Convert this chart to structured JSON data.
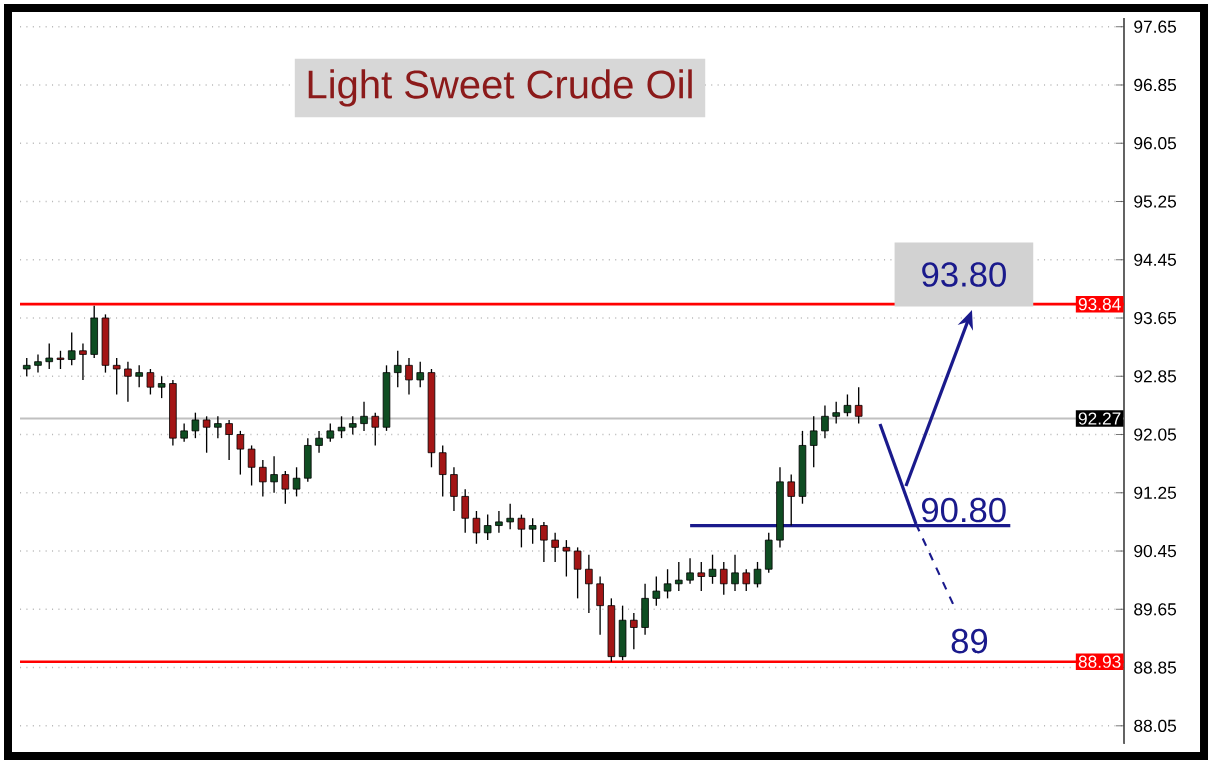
{
  "chart_data": {
    "type": "candlestick",
    "title": "Light Sweet Crude Oil",
    "categories": [
      null,
      null,
      null,
      null,
      null,
      null,
      null,
      null,
      null,
      null,
      null,
      null,
      null,
      null,
      null,
      null,
      null,
      null,
      null,
      null,
      null,
      null,
      null,
      null,
      null,
      null,
      null,
      null,
      null,
      null,
      null,
      null,
      null,
      null,
      null,
      null,
      null,
      null,
      null,
      null,
      null,
      null,
      null,
      null,
      null,
      null,
      null,
      null,
      null,
      null,
      null,
      null,
      null,
      null,
      null,
      null,
      null,
      null,
      null,
      null,
      null,
      null,
      null,
      null,
      null,
      null,
      null,
      null,
      null,
      null,
      null,
      null,
      null,
      null,
      null,
      null,
      null,
      null,
      null,
      null,
      null,
      null,
      null,
      null,
      null,
      null,
      null,
      null,
      null,
      null,
      null,
      null,
      null,
      null,
      null,
      null,
      null,
      null
    ],
    "ohlc": [
      [
        92.95,
        93.1,
        92.85,
        93.0
      ],
      [
        93.0,
        93.15,
        92.9,
        93.05
      ],
      [
        93.05,
        93.3,
        92.95,
        93.1
      ],
      [
        93.1,
        93.2,
        92.95,
        93.08
      ],
      [
        93.08,
        93.45,
        93.0,
        93.2
      ],
      [
        93.2,
        93.3,
        92.8,
        93.15
      ],
      [
        93.15,
        93.82,
        93.1,
        93.65
      ],
      [
        93.65,
        93.7,
        92.9,
        93.0
      ],
      [
        93.0,
        93.1,
        92.6,
        92.95
      ],
      [
        92.95,
        93.05,
        92.5,
        92.85
      ],
      [
        92.85,
        93.0,
        92.7,
        92.9
      ],
      [
        92.9,
        92.95,
        92.6,
        92.7
      ],
      [
        92.7,
        92.85,
        92.55,
        92.75
      ],
      [
        92.75,
        92.8,
        91.9,
        92.0
      ],
      [
        92.0,
        92.2,
        91.95,
        92.1
      ],
      [
        92.1,
        92.35,
        92.0,
        92.25
      ],
      [
        92.25,
        92.3,
        91.8,
        92.15
      ],
      [
        92.15,
        92.3,
        92.0,
        92.2
      ],
      [
        92.2,
        92.25,
        91.7,
        92.05
      ],
      [
        92.05,
        92.1,
        91.5,
        91.85
      ],
      [
        91.85,
        91.9,
        91.35,
        91.6
      ],
      [
        91.6,
        91.7,
        91.2,
        91.4
      ],
      [
        91.4,
        91.75,
        91.25,
        91.5
      ],
      [
        91.5,
        91.55,
        91.1,
        91.3
      ],
      [
        91.3,
        91.6,
        91.2,
        91.45
      ],
      [
        91.45,
        92.0,
        91.4,
        91.9
      ],
      [
        91.9,
        92.1,
        91.8,
        92.0
      ],
      [
        92.0,
        92.2,
        91.95,
        92.1
      ],
      [
        92.1,
        92.3,
        92.0,
        92.15
      ],
      [
        92.15,
        92.3,
        92.05,
        92.2
      ],
      [
        92.2,
        92.5,
        92.1,
        92.3
      ],
      [
        92.3,
        92.35,
        91.9,
        92.15
      ],
      [
        92.15,
        93.0,
        92.1,
        92.9
      ],
      [
        92.9,
        93.2,
        92.7,
        93.0
      ],
      [
        93.0,
        93.1,
        92.6,
        92.8
      ],
      [
        92.8,
        93.05,
        92.7,
        92.9
      ],
      [
        92.9,
        92.95,
        91.6,
        91.8
      ],
      [
        91.8,
        91.9,
        91.2,
        91.5
      ],
      [
        91.5,
        91.6,
        91.0,
        91.2
      ],
      [
        91.2,
        91.3,
        90.7,
        90.9
      ],
      [
        90.9,
        91.0,
        90.55,
        90.7
      ],
      [
        90.7,
        90.95,
        90.6,
        90.8
      ],
      [
        90.8,
        91.0,
        90.7,
        90.85
      ],
      [
        90.85,
        91.1,
        90.75,
        90.9
      ],
      [
        90.9,
        90.95,
        90.5,
        90.75
      ],
      [
        90.75,
        90.9,
        90.55,
        90.8
      ],
      [
        90.8,
        90.85,
        90.3,
        90.6
      ],
      [
        90.6,
        90.7,
        90.3,
        90.5
      ],
      [
        90.5,
        90.6,
        90.1,
        90.45
      ],
      [
        90.45,
        90.5,
        89.8,
        90.2
      ],
      [
        90.2,
        90.4,
        89.6,
        90.0
      ],
      [
        90.0,
        90.1,
        89.3,
        89.7
      ],
      [
        89.7,
        89.8,
        88.93,
        89.0
      ],
      [
        89.0,
        89.7,
        88.95,
        89.5
      ],
      [
        89.5,
        89.6,
        89.1,
        89.4
      ],
      [
        89.4,
        90.0,
        89.3,
        89.8
      ],
      [
        89.8,
        90.1,
        89.7,
        89.9
      ],
      [
        89.9,
        90.2,
        89.8,
        90.0
      ],
      [
        90.0,
        90.3,
        89.9,
        90.05
      ],
      [
        90.05,
        90.35,
        90.0,
        90.15
      ],
      [
        90.15,
        90.3,
        89.9,
        90.1
      ],
      [
        90.1,
        90.4,
        90.0,
        90.2
      ],
      [
        90.2,
        90.3,
        89.85,
        90.0
      ],
      [
        90.0,
        90.4,
        89.9,
        90.15
      ],
      [
        90.15,
        90.2,
        89.9,
        90.0
      ],
      [
        90.0,
        90.3,
        89.95,
        90.2
      ],
      [
        90.2,
        90.7,
        90.15,
        90.6
      ],
      [
        90.6,
        91.6,
        90.5,
        91.4
      ],
      [
        91.4,
        91.5,
        90.8,
        91.2
      ],
      [
        91.2,
        92.1,
        91.1,
        91.9
      ],
      [
        91.9,
        92.3,
        91.6,
        92.1
      ],
      [
        92.1,
        92.45,
        92.0,
        92.3
      ],
      [
        92.3,
        92.5,
        92.2,
        92.35
      ],
      [
        92.35,
        92.6,
        92.3,
        92.45
      ],
      [
        92.45,
        92.7,
        92.2,
        92.3
      ],
      null,
      null,
      null,
      null,
      null,
      null,
      null,
      null,
      null,
      null,
      null,
      null,
      null,
      null,
      null,
      null,
      null,
      null,
      null,
      null,
      null,
      null,
      null
    ],
    "ylim": [
      87.8,
      97.77
    ],
    "yticks": [
      88.05,
      88.85,
      89.65,
      90.45,
      91.25,
      92.05,
      92.85,
      93.65,
      94.45,
      95.25,
      96.05,
      96.85,
      97.65
    ],
    "grid": true,
    "tick_labels": "y",
    "ref_lines": [
      {
        "axis": "y",
        "value": 93.84,
        "label": "93.84",
        "color": "#ff0000"
      },
      {
        "axis": "y",
        "value": 88.93,
        "label": "88.93",
        "color": "#ff0000"
      },
      {
        "axis": "y",
        "value": 92.27,
        "label": "92.27",
        "color": "#c0c0c0"
      },
      {
        "axis": "y",
        "value": 90.8,
        "label": "90.80",
        "color": "#1a1a8c"
      }
    ],
    "annotations": [
      {
        "text": "93.80",
        "y": 93.8
      },
      {
        "text": "89",
        "y": 89
      }
    ]
  }
}
